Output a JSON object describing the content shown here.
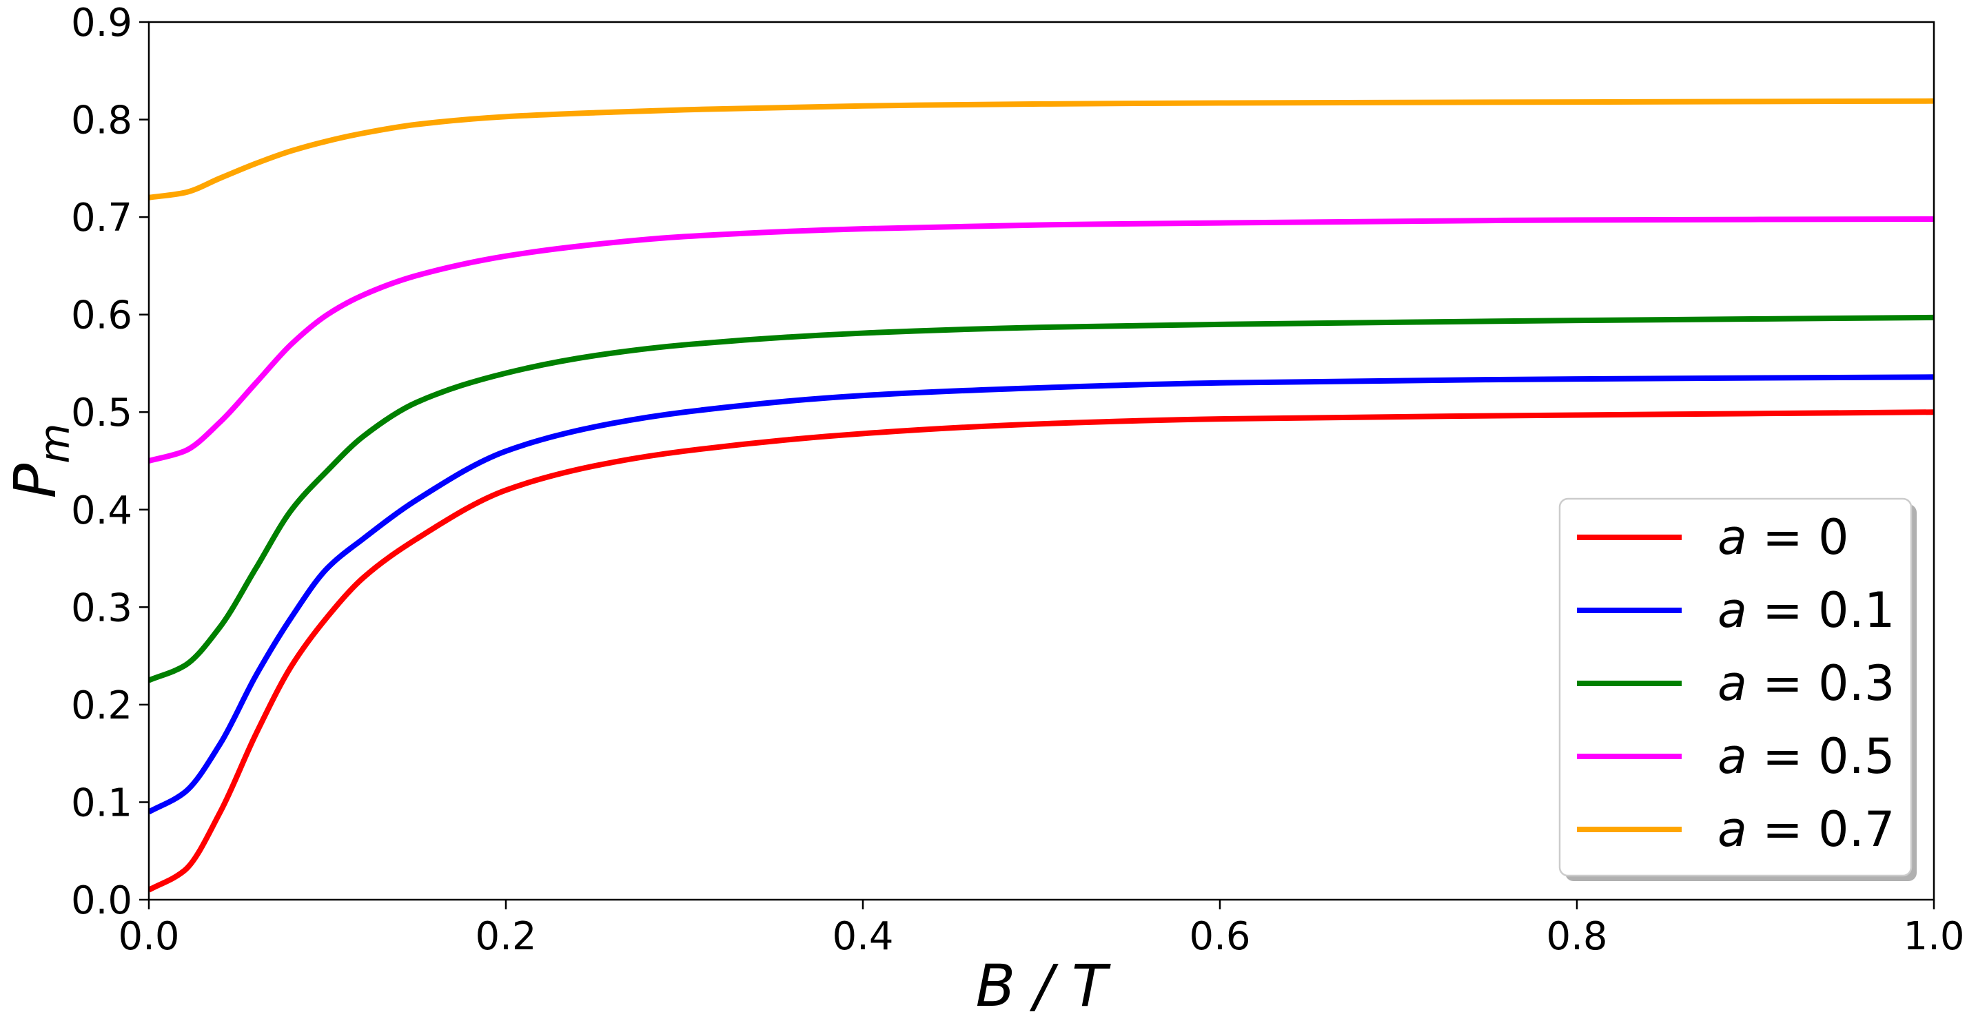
{
  "chart_data": {
    "type": "line",
    "title": "",
    "xlabel": "B / T",
    "ylabel": "P_m",
    "ylabel_main": "P",
    "ylabel_sub": "m",
    "xlim": [
      0.0,
      1.0
    ],
    "ylim": [
      0.0,
      0.9
    ],
    "x_ticks": [
      0.0,
      0.2,
      0.4,
      0.6,
      0.8,
      1.0
    ],
    "x_tick_labels": [
      "0.0",
      "0.2",
      "0.4",
      "0.6",
      "0.8",
      "1.0"
    ],
    "y_ticks": [
      0.0,
      0.1,
      0.2,
      0.3,
      0.4,
      0.5,
      0.6,
      0.7,
      0.8,
      0.9
    ],
    "y_tick_labels": [
      "0.0",
      "0.1",
      "0.2",
      "0.3",
      "0.4",
      "0.5",
      "0.6",
      "0.7",
      "0.8",
      "0.9"
    ],
    "grid": false,
    "legend_position": "lower-right",
    "x": [
      0.0,
      0.02,
      0.04,
      0.06,
      0.08,
      0.1,
      0.12,
      0.15,
      0.2,
      0.25,
      0.3,
      0.4,
      0.5,
      0.6,
      0.8,
      1.0
    ],
    "series": [
      {
        "name": "a = 0",
        "legend_var": "a",
        "legend_value": "0",
        "color": "#ff0000",
        "values": [
          0.01,
          0.03,
          0.09,
          0.17,
          0.24,
          0.29,
          0.33,
          0.37,
          0.42,
          0.445,
          0.46,
          0.478,
          0.488,
          0.493,
          0.497,
          0.5
        ]
      },
      {
        "name": "a = 0.1",
        "legend_var": "a",
        "legend_value": "0.1",
        "color": "#0000ff",
        "values": [
          0.09,
          0.11,
          0.16,
          0.23,
          0.29,
          0.34,
          0.37,
          0.41,
          0.46,
          0.485,
          0.5,
          0.517,
          0.525,
          0.53,
          0.534,
          0.536
        ]
      },
      {
        "name": "a = 0.3",
        "legend_var": "a",
        "legend_value": "0.3",
        "color": "#008000",
        "values": [
          0.225,
          0.24,
          0.28,
          0.34,
          0.4,
          0.44,
          0.475,
          0.51,
          0.54,
          0.558,
          0.569,
          0.581,
          0.587,
          0.59,
          0.594,
          0.597
        ]
      },
      {
        "name": "a = 0.5",
        "legend_var": "a",
        "legend_value": "0.5",
        "color": "#ff00ff",
        "values": [
          0.45,
          0.46,
          0.49,
          0.53,
          0.57,
          0.6,
          0.62,
          0.64,
          0.66,
          0.672,
          0.68,
          0.688,
          0.692,
          0.694,
          0.697,
          0.698
        ]
      },
      {
        "name": "a = 0.7",
        "legend_var": "a",
        "legend_value": "0.7",
        "color": "#ffa500",
        "values": [
          0.72,
          0.725,
          0.74,
          0.755,
          0.768,
          0.778,
          0.786,
          0.795,
          0.803,
          0.807,
          0.81,
          0.814,
          0.816,
          0.817,
          0.818,
          0.819
        ]
      }
    ]
  }
}
